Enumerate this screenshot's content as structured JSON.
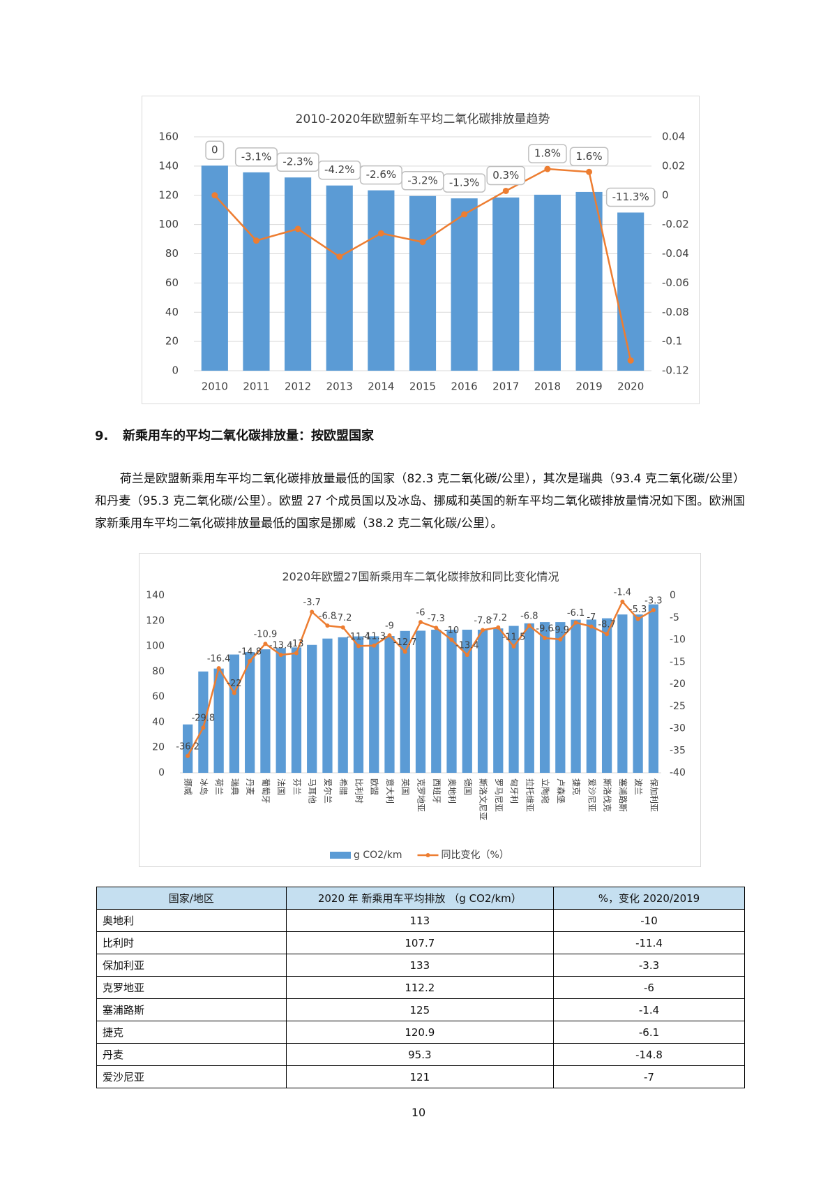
{
  "chart_data": [
    {
      "type": "bar",
      "title": "2010-2020年欧盟新车平均二氧化碳排放量趋势",
      "categories": [
        "2010",
        "2011",
        "2012",
        "2013",
        "2014",
        "2015",
        "2016",
        "2017",
        "2018",
        "2019",
        "2020"
      ],
      "series": [
        {
          "name": "g CO2/km",
          "type": "bar",
          "color": "#5b9bd5",
          "values": [
            140.3,
            135.7,
            132.2,
            126.7,
            123.4,
            119.5,
            117.9,
            118.5,
            120.4,
            122.3,
            108.2
          ]
        },
        {
          "name": "同比变化",
          "type": "line",
          "axis": "y2",
          "color": "#ed7d31",
          "values": [
            0,
            -0.031,
            -0.023,
            -0.042,
            -0.026,
            -0.032,
            -0.013,
            0.003,
            0.018,
            0.016,
            -0.113
          ],
          "value_labels": [
            "0",
            "-3.1%",
            "-2.3%",
            "-4.2%",
            "-2.6%",
            "-3.2%",
            "-1.3%",
            "0.3%",
            "1.8%",
            "1.6%",
            "-11.3%"
          ]
        }
      ],
      "ylim": [
        0,
        160
      ],
      "yticks": [
        0,
        20,
        40,
        60,
        80,
        100,
        120,
        140,
        160
      ],
      "y2lim": [
        -0.12,
        0.04
      ],
      "y2ticks": [
        -0.12,
        -0.1,
        -0.08,
        -0.06,
        -0.04,
        -0.02,
        0,
        0.02,
        0.04
      ],
      "grid": true,
      "legend": false
    },
    {
      "type": "bar",
      "title": "2020年欧盟27国新乘用车二氧化碳排放和同比变化情况",
      "categories": [
        "挪威",
        "冰岛",
        "荷兰",
        "瑞典",
        "丹麦",
        "葡萄牙",
        "法国",
        "芬兰",
        "马耳他",
        "爱尔兰",
        "希腊",
        "比利时",
        "欧盟",
        "意大利",
        "英国",
        "克罗地亚",
        "西班牙",
        "奥地利",
        "德国",
        "斯洛文尼亚",
        "罗马尼亚",
        "匈牙利",
        "拉托维亚",
        "立陶宛",
        "卢森堡",
        "捷克",
        "爱沙尼亚",
        "斯洛伐克",
        "塞浦路斯",
        "波兰",
        "保加利亚"
      ],
      "series": [
        {
          "name": "g CO2/km",
          "type": "bar",
          "color": "#5b9bd5",
          "values": [
            38.2,
            80,
            82.3,
            93.4,
            95.3,
            97.5,
            98.5,
            99,
            101,
            106,
            107,
            107.7,
            107.8,
            108,
            112,
            112.2,
            113,
            113,
            113,
            113,
            114,
            116,
            118,
            119,
            119,
            120.9,
            121,
            122,
            125,
            125,
            133
          ]
        },
        {
          "name": "同比变化（%）",
          "type": "line",
          "axis": "y2",
          "color": "#ed7d31",
          "values": [
            -36.2,
            -29.8,
            -16.4,
            -22,
            -14.8,
            -10.9,
            -13.4,
            -13,
            -3.7,
            -6.8,
            -7.2,
            -11.4,
            -11.3,
            -9,
            -12.7,
            -6,
            -7.3,
            -10,
            -13.4,
            -7.8,
            -7.2,
            -11.5,
            -6.8,
            -9.6,
            -9.9,
            -6.1,
            -7,
            -8.7,
            -1.4,
            -5.3,
            -3.3
          ]
        }
      ],
      "ylim": [
        0,
        140
      ],
      "yticks": [
        0,
        20,
        40,
        60,
        80,
        100,
        120,
        140
      ],
      "y2lim": [
        -40,
        0
      ],
      "y2ticks": [
        -40,
        -35,
        -30,
        -25,
        -20,
        -15,
        -10,
        -5,
        0
      ],
      "grid": false,
      "legend": "bottom"
    }
  ],
  "heading": {
    "number": "9.",
    "text": "新乘用车的平均二氧化碳排放量：按欧盟国家"
  },
  "paragraph": "荷兰是欧盟新乘用车平均二氧化碳排放量最低的国家（82.3 克二氧化碳/公里），其次是瑞典（93.4 克二氧化碳/公里）和丹麦（95.3 克二氧化碳/公里）。欧盟 27 个成员国以及冰岛、挪威和英国的新车平均二氧化碳排放量情况如下图。欧洲国家新乘用车平均二氧化碳排放量最低的国家是挪威（38.2 克二氧化碳/公里）。",
  "table": {
    "header": [
      "国家/地区",
      "2020 年 新乘用车平均排放 （g CO2/km）",
      "%，变化 2020/2019"
    ],
    "rows": [
      [
        "奥地利",
        113,
        -10
      ],
      [
        "比利时",
        107.7,
        -11.4
      ],
      [
        "保加利亚",
        133,
        -3.3
      ],
      [
        "克罗地亚",
        112.2,
        -6
      ],
      [
        "塞浦路斯",
        125,
        -1.4
      ],
      [
        "捷克",
        120.9,
        -6.1
      ],
      [
        "丹麦",
        95.3,
        -14.8
      ],
      [
        "爱沙尼亚",
        121,
        -7
      ]
    ]
  },
  "page_number": "10"
}
